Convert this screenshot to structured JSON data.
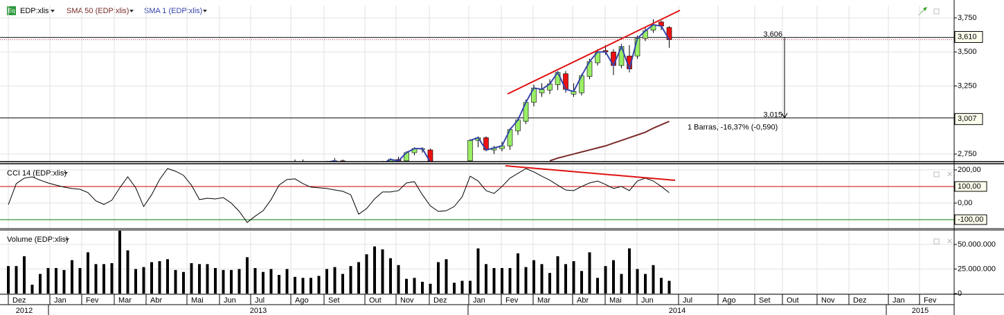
{
  "toolbar": {
    "symbol_icon": "Eq"
  },
  "chart_data": [
    {
      "type": "candlestick",
      "name": "EDP:xlis",
      "up_color": "#99ee66",
      "down_color": "#ee1111",
      "open": [
        null,
        null,
        null,
        null,
        null,
        null,
        null,
        null,
        null,
        null,
        null,
        null,
        null,
        null,
        null,
        null,
        null,
        null,
        null,
        null,
        null,
        null,
        null,
        null,
        null,
        null,
        null,
        null,
        null,
        null,
        null,
        null,
        null,
        null,
        null,
        null,
        2.62,
        2.69,
        null,
        null,
        2.64,
        2.69,
        2.7,
        null,
        null,
        null,
        null,
        2.62,
        2.68,
        2.71,
        2.7,
        2.76,
        2.79,
        2.78,
        null,
        null,
        null,
        null,
        2.7,
        2.85,
        2.87,
        2.78,
        2.79,
        2.81,
        2.92,
        2.99,
        3.13,
        3.2,
        3.22,
        3.26,
        3.34,
        3.19,
        3.2,
        3.32,
        3.42,
        3.51,
        3.5,
        3.4,
        3.47,
        3.47,
        3.6,
        3.66,
        3.72,
        3.68
      ],
      "high": [
        null,
        null,
        null,
        null,
        null,
        null,
        null,
        null,
        null,
        null,
        null,
        null,
        null,
        null,
        null,
        null,
        null,
        null,
        null,
        null,
        null,
        null,
        null,
        null,
        null,
        null,
        null,
        null,
        null,
        null,
        null,
        null,
        null,
        null,
        null,
        null,
        2.71,
        2.71,
        null,
        null,
        2.7,
        2.72,
        2.71,
        null,
        null,
        null,
        null,
        2.7,
        2.72,
        2.73,
        2.77,
        2.8,
        2.8,
        2.79,
        null,
        null,
        null,
        null,
        2.86,
        2.88,
        2.88,
        2.81,
        2.84,
        2.94,
        3.02,
        3.15,
        3.26,
        3.27,
        3.3,
        3.36,
        3.36,
        3.27,
        3.34,
        3.45,
        3.52,
        3.55,
        3.52,
        3.56,
        3.55,
        3.62,
        3.68,
        3.74,
        3.73,
        3.69
      ],
      "low": [
        null,
        null,
        null,
        null,
        null,
        null,
        null,
        null,
        null,
        null,
        null,
        null,
        null,
        null,
        null,
        null,
        null,
        null,
        null,
        null,
        null,
        null,
        null,
        null,
        null,
        null,
        null,
        null,
        null,
        null,
        null,
        null,
        null,
        null,
        null,
        null,
        2.6,
        2.64,
        null,
        null,
        2.62,
        2.66,
        2.65,
        null,
        null,
        null,
        null,
        2.6,
        2.66,
        2.68,
        2.69,
        2.74,
        2.76,
        2.68,
        null,
        null,
        null,
        null,
        2.69,
        2.8,
        2.77,
        2.75,
        2.77,
        2.78,
        2.89,
        2.97,
        3.1,
        3.17,
        3.19,
        3.22,
        3.2,
        3.17,
        3.18,
        3.3,
        3.4,
        3.48,
        3.33,
        3.38,
        3.35,
        3.45,
        3.58,
        3.64,
        3.66,
        3.53
      ],
      "close": [
        null,
        null,
        null,
        null,
        null,
        null,
        null,
        null,
        null,
        null,
        null,
        null,
        null,
        null,
        null,
        null,
        null,
        null,
        null,
        null,
        null,
        null,
        null,
        null,
        null,
        null,
        null,
        null,
        null,
        null,
        null,
        null,
        null,
        null,
        null,
        null,
        2.69,
        2.66,
        null,
        null,
        2.69,
        2.7,
        2.67,
        null,
        null,
        null,
        null,
        2.68,
        2.71,
        2.7,
        2.76,
        2.79,
        2.79,
        2.69,
        null,
        null,
        null,
        null,
        2.85,
        2.87,
        2.78,
        2.795,
        2.81,
        2.93,
        3.0,
        3.13,
        3.235,
        3.225,
        3.265,
        3.35,
        3.225,
        3.21,
        3.325,
        3.43,
        3.5,
        3.5,
        3.4,
        3.54,
        3.375,
        3.6,
        3.655,
        3.7,
        3.69,
        3.59
      ],
      "overlays": [
        {
          "name": "SMA 50 (EDP:xlis)",
          "color": "#7a2a2a",
          "values": [
            null,
            null,
            null,
            null,
            null,
            null,
            null,
            null,
            null,
            null,
            null,
            null,
            null,
            null,
            null,
            null,
            null,
            null,
            null,
            null,
            null,
            null,
            null,
            null,
            null,
            null,
            null,
            null,
            null,
            null,
            null,
            null,
            null,
            null,
            null,
            null,
            null,
            null,
            null,
            null,
            null,
            null,
            null,
            null,
            null,
            null,
            null,
            null,
            null,
            null,
            null,
            null,
            null,
            null,
            null,
            null,
            null,
            null,
            null,
            null,
            null,
            null,
            null,
            null,
            null,
            null,
            null,
            null,
            2.7,
            2.72,
            2.735,
            2.75,
            2.765,
            2.78,
            2.795,
            2.81,
            2.83,
            2.85,
            2.87,
            2.89,
            2.91,
            2.94,
            2.965,
            2.99
          ]
        },
        {
          "name": "SMA 1 (EDP:xlis)",
          "color": "#3344aa"
        }
      ],
      "ylim": [
        2.694,
        3.841
      ],
      "yticks": [
        {
          "value": 2.75,
          "label": "2,750"
        },
        {
          "value": 3.25,
          "label": "3,250"
        },
        {
          "value": 3.5,
          "label": "3,500"
        },
        {
          "value": 3.75,
          "label": "3,750"
        }
      ],
      "last_price": 3.59,
      "price_tags": [
        {
          "value": 3.61,
          "label": "3,610"
        },
        {
          "value": 3.007,
          "label": "3,007"
        }
      ],
      "measure": {
        "levels": [
          {
            "value": 3.606,
            "label": "3,606"
          },
          {
            "value": 3.015,
            "label": "3,015"
          }
        ],
        "label": "1 Barras, -16,37% (-0,590)"
      },
      "grid": true
    },
    {
      "type": "line",
      "name": "CCI 14 (EDP:xlis)",
      "color": "#000000",
      "values": [
        -10,
        117,
        150,
        158,
        138,
        121,
        108,
        96,
        88,
        83,
        63,
        13,
        -8,
        17,
        92,
        158,
        92,
        -21,
        50,
        142,
        208,
        192,
        167,
        108,
        21,
        29,
        25,
        33,
        0,
        -50,
        -117,
        -79,
        -46,
        21,
        108,
        142,
        146,
        117,
        96,
        92,
        88,
        79,
        71,
        50,
        -67,
        -33,
        25,
        67,
        67,
        75,
        121,
        129,
        50,
        -17,
        -50,
        -46,
        -21,
        38,
        162,
        133,
        75,
        58,
        100,
        150,
        179,
        208,
        188,
        162,
        138,
        108,
        79,
        75,
        100,
        121,
        133,
        112,
        88,
        100,
        75,
        133,
        150,
        133,
        100,
        63
      ],
      "ylim": [
        -150,
        233
      ],
      "yticks": [
        {
          "value": -100,
          "label": "-100,00"
        },
        {
          "value": 0,
          "label": "0,00"
        },
        {
          "value": 100,
          "label": "100,00"
        },
        {
          "value": 200,
          "label": "200,00"
        }
      ],
      "reference_lines": [
        {
          "value": 100,
          "color": "#cc0000"
        },
        {
          "value": -100,
          "color": "#007700"
        }
      ],
      "grid": true
    },
    {
      "type": "bar",
      "name": "Volume (EDP:xlis)",
      "color": "#000000",
      "values": [
        28000000,
        28000000,
        38000000,
        9000000,
        20000000,
        26000000,
        26000000,
        24000000,
        34000000,
        26000000,
        42000000,
        30000000,
        30000000,
        31000000,
        64000000,
        44000000,
        25000000,
        27000000,
        32000000,
        33000000,
        35000000,
        24000000,
        22000000,
        31000000,
        30000000,
        30000000,
        26000000,
        24000000,
        24000000,
        25000000,
        37000000,
        26000000,
        22000000,
        25000000,
        19000000,
        25000000,
        17000000,
        16000000,
        16000000,
        18000000,
        25000000,
        27000000,
        20000000,
        28000000,
        32000000,
        40000000,
        48000000,
        45000000,
        36000000,
        29000000,
        15000000,
        16000000,
        12000000,
        10000000,
        32000000,
        35000000,
        11000000,
        13000000,
        13000000,
        46000000,
        30000000,
        26000000,
        26000000,
        26000000,
        41000000,
        27000000,
        34000000,
        30000000,
        21000000,
        38000000,
        30000000,
        33000000,
        23000000,
        42000000,
        16000000,
        28000000,
        34000000,
        20000000,
        46000000,
        25000000,
        20000000,
        29000000,
        16000000,
        13000000
      ],
      "ylim": [
        0,
        64000000
      ],
      "yticks": [
        0,
        {
          "value": 25000000,
          "label": "25.000.000"
        },
        {
          "value": 50000000,
          "label": "50.000.000"
        }
      ],
      "grid": true
    }
  ],
  "x_axis": {
    "months": [
      "Dez",
      "Jan",
      "Fev",
      "Mar",
      "Abr",
      "Mai",
      "Jun",
      "Jul",
      "Ago",
      "Set",
      "Out",
      "Nov",
      "Dez",
      "Jan",
      "Fev",
      "Mar",
      "Abr",
      "Mai",
      "Jun",
      "Jul",
      "Ago",
      "Set",
      "Out",
      "Nov",
      "Dez",
      "Jan",
      "Fev"
    ],
    "years": [
      "2012",
      "2013",
      "2014",
      "2015"
    ]
  }
}
